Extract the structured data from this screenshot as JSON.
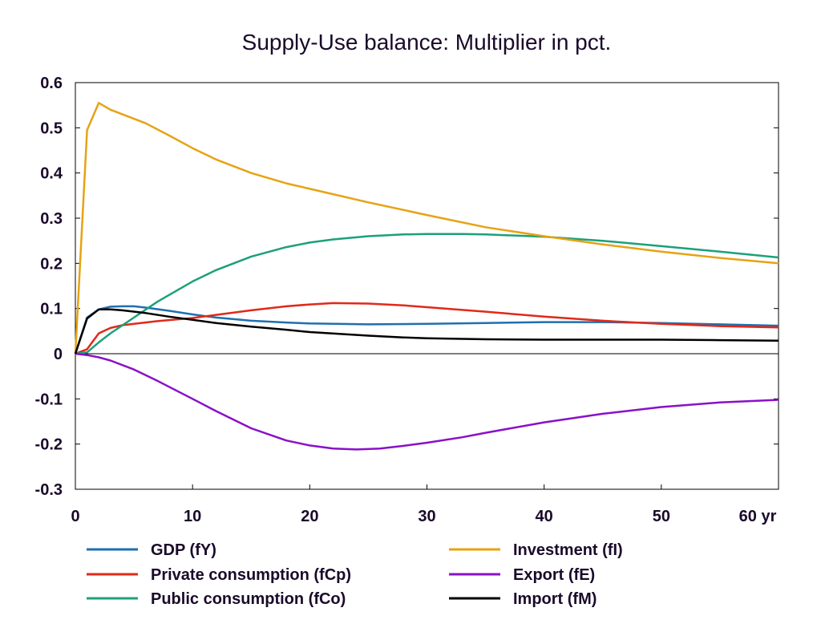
{
  "chart_data": {
    "type": "line",
    "title": "Supply-Use balance: Multiplier in pct.",
    "xlabel": "",
    "ylabel": "",
    "x_unit_label": "yr",
    "xlim": [
      0,
      60
    ],
    "ylim": [
      -0.3,
      0.6
    ],
    "x_ticks": [
      0,
      10,
      20,
      30,
      40,
      50,
      60
    ],
    "x_tick_labels": [
      "0",
      "10",
      "20",
      "30",
      "40",
      "50",
      "60 yr"
    ],
    "y_ticks": [
      -0.3,
      -0.2,
      -0.1,
      0,
      0.1,
      0.2,
      0.3,
      0.4,
      0.5,
      0.6
    ],
    "y_tick_labels": [
      "-0.3",
      "-0.2",
      "-0.1",
      "0",
      "0.1",
      "0.2",
      "0.3",
      "0.4",
      "0.5",
      "0.6"
    ],
    "grid": false,
    "legend_position": "bottom",
    "series": [
      {
        "name": "GDP (fY)",
        "color": "#1f6fb0",
        "points": [
          [
            0,
            0
          ],
          [
            1,
            0.08
          ],
          [
            2,
            0.098
          ],
          [
            3,
            0.104
          ],
          [
            4,
            0.105
          ],
          [
            5,
            0.105
          ],
          [
            6,
            0.102
          ],
          [
            8,
            0.095
          ],
          [
            10,
            0.087
          ],
          [
            12,
            0.08
          ],
          [
            15,
            0.073
          ],
          [
            18,
            0.069
          ],
          [
            20,
            0.067
          ],
          [
            25,
            0.065
          ],
          [
            30,
            0.066
          ],
          [
            35,
            0.068
          ],
          [
            40,
            0.07
          ],
          [
            45,
            0.07
          ],
          [
            50,
            0.068
          ],
          [
            55,
            0.065
          ],
          [
            60,
            0.062
          ]
        ]
      },
      {
        "name": "Private consumption (fCp)",
        "color": "#e0291a",
        "points": [
          [
            0,
            0
          ],
          [
            1,
            0.01
          ],
          [
            2,
            0.045
          ],
          [
            3,
            0.057
          ],
          [
            4,
            0.063
          ],
          [
            5,
            0.066
          ],
          [
            7,
            0.072
          ],
          [
            10,
            0.079
          ],
          [
            12,
            0.086
          ],
          [
            15,
            0.096
          ],
          [
            18,
            0.105
          ],
          [
            20,
            0.109
          ],
          [
            22,
            0.112
          ],
          [
            25,
            0.111
          ],
          [
            28,
            0.107
          ],
          [
            30,
            0.103
          ],
          [
            35,
            0.093
          ],
          [
            40,
            0.082
          ],
          [
            45,
            0.073
          ],
          [
            50,
            0.066
          ],
          [
            55,
            0.061
          ],
          [
            60,
            0.058
          ]
        ]
      },
      {
        "name": "Public consumption (fCo)",
        "color": "#1ca07a",
        "points": [
          [
            0,
            0
          ],
          [
            1,
            0.003
          ],
          [
            2,
            0.025
          ],
          [
            3,
            0.045
          ],
          [
            5,
            0.08
          ],
          [
            7,
            0.115
          ],
          [
            10,
            0.16
          ],
          [
            12,
            0.185
          ],
          [
            15,
            0.215
          ],
          [
            18,
            0.236
          ],
          [
            20,
            0.246
          ],
          [
            22,
            0.253
          ],
          [
            25,
            0.26
          ],
          [
            28,
            0.264
          ],
          [
            30,
            0.265
          ],
          [
            33,
            0.265
          ],
          [
            35,
            0.264
          ],
          [
            40,
            0.259
          ],
          [
            45,
            0.25
          ],
          [
            50,
            0.238
          ],
          [
            55,
            0.226
          ],
          [
            60,
            0.213
          ]
        ]
      },
      {
        "name": "Investment (fI)",
        "color": "#e6a313",
        "points": [
          [
            0,
            0
          ],
          [
            1,
            0.495
          ],
          [
            2,
            0.555
          ],
          [
            3,
            0.54
          ],
          [
            4,
            0.53
          ],
          [
            6,
            0.51
          ],
          [
            8,
            0.483
          ],
          [
            10,
            0.455
          ],
          [
            12,
            0.43
          ],
          [
            15,
            0.4
          ],
          [
            18,
            0.377
          ],
          [
            20,
            0.365
          ],
          [
            25,
            0.335
          ],
          [
            30,
            0.307
          ],
          [
            35,
            0.28
          ],
          [
            40,
            0.26
          ],
          [
            45,
            0.242
          ],
          [
            50,
            0.226
          ],
          [
            55,
            0.212
          ],
          [
            60,
            0.2
          ]
        ]
      },
      {
        "name": "Export (fE)",
        "color": "#8a10c8",
        "points": [
          [
            0,
            0
          ],
          [
            1,
            -0.003
          ],
          [
            2,
            -0.008
          ],
          [
            3,
            -0.015
          ],
          [
            5,
            -0.035
          ],
          [
            7,
            -0.06
          ],
          [
            10,
            -0.1
          ],
          [
            12,
            -0.127
          ],
          [
            15,
            -0.165
          ],
          [
            18,
            -0.192
          ],
          [
            20,
            -0.203
          ],
          [
            22,
            -0.21
          ],
          [
            24,
            -0.212
          ],
          [
            26,
            -0.21
          ],
          [
            28,
            -0.204
          ],
          [
            30,
            -0.197
          ],
          [
            33,
            -0.185
          ],
          [
            35,
            -0.175
          ],
          [
            40,
            -0.152
          ],
          [
            45,
            -0.133
          ],
          [
            50,
            -0.118
          ],
          [
            55,
            -0.108
          ],
          [
            60,
            -0.102
          ]
        ]
      },
      {
        "name": "Import (fM)",
        "color": "#000000",
        "points": [
          [
            0,
            0
          ],
          [
            1,
            0.078
          ],
          [
            2,
            0.098
          ],
          [
            3,
            0.098
          ],
          [
            4,
            0.096
          ],
          [
            6,
            0.09
          ],
          [
            8,
            0.082
          ],
          [
            10,
            0.075
          ],
          [
            12,
            0.068
          ],
          [
            15,
            0.06
          ],
          [
            18,
            0.053
          ],
          [
            20,
            0.048
          ],
          [
            25,
            0.04
          ],
          [
            28,
            0.036
          ],
          [
            30,
            0.034
          ],
          [
            35,
            0.032
          ],
          [
            40,
            0.031
          ],
          [
            45,
            0.031
          ],
          [
            50,
            0.031
          ],
          [
            55,
            0.03
          ],
          [
            60,
            0.029
          ]
        ]
      }
    ]
  }
}
